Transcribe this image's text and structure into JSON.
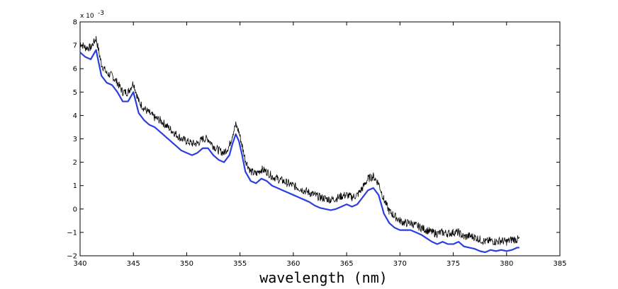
{
  "chart_data": {
    "type": "line",
    "title": "",
    "xlabel": "wavelength (nm)",
    "ylabel": "",
    "y_multiplier_base": "x 10",
    "y_multiplier_exp": "-3",
    "xlim": [
      340,
      385
    ],
    "ylim": [
      -2,
      8
    ],
    "x_ticks": [
      340,
      345,
      350,
      355,
      360,
      365,
      370,
      375,
      380,
      385
    ],
    "y_ticks": [
      -2,
      -1,
      0,
      1,
      2,
      3,
      4,
      5,
      6,
      7,
      8
    ],
    "grid": false,
    "series": [
      {
        "color": "#000000",
        "style": "noisy",
        "x": [
          340.0,
          340.5,
          341.0,
          341.5,
          342.0,
          342.5,
          343.0,
          343.5,
          344.0,
          344.5,
          345.0,
          345.5,
          346.0,
          346.5,
          347.0,
          347.5,
          348.0,
          348.5,
          349.0,
          349.5,
          350.0,
          350.5,
          351.0,
          351.5,
          352.0,
          352.5,
          353.0,
          353.5,
          354.0,
          354.3,
          354.6,
          354.9,
          355.2,
          355.5,
          356.0,
          356.5,
          357.0,
          357.5,
          358.0,
          358.5,
          359.0,
          359.5,
          360.0,
          360.5,
          361.0,
          361.5,
          362.0,
          362.5,
          363.0,
          363.5,
          364.0,
          364.5,
          365.0,
          365.5,
          366.0,
          366.5,
          367.0,
          367.5,
          368.0,
          368.5,
          369.0,
          369.5,
          370.0,
          370.5,
          371.0,
          371.5,
          372.0,
          372.5,
          373.0,
          373.5,
          374.0,
          374.5,
          375.0,
          375.5,
          376.0,
          376.5,
          377.0,
          377.5,
          378.0,
          378.5,
          379.0,
          379.5,
          380.0,
          380.5,
          381.0,
          381.2
        ],
        "y": [
          7.1,
          6.9,
          6.9,
          7.3,
          6.2,
          5.8,
          5.7,
          5.4,
          5.0,
          5.0,
          5.4,
          4.6,
          4.3,
          4.1,
          3.9,
          3.8,
          3.6,
          3.4,
          3.2,
          3.0,
          2.9,
          2.8,
          2.8,
          3.0,
          3.0,
          2.7,
          2.5,
          2.4,
          2.7,
          3.2,
          3.6,
          3.3,
          2.7,
          2.1,
          1.6,
          1.5,
          1.7,
          1.6,
          1.4,
          1.3,
          1.2,
          1.1,
          1.0,
          0.9,
          0.8,
          0.7,
          0.6,
          0.5,
          0.45,
          0.4,
          0.45,
          0.55,
          0.6,
          0.5,
          0.6,
          0.9,
          1.3,
          1.4,
          1.1,
          0.4,
          -0.1,
          -0.3,
          -0.5,
          -0.6,
          -0.6,
          -0.7,
          -0.8,
          -0.9,
          -1.0,
          -1.05,
          -1.0,
          -1.05,
          -1.0,
          -1.0,
          -1.2,
          -1.15,
          -1.2,
          -1.3,
          -1.4,
          -1.35,
          -1.4,
          -1.35,
          -1.4,
          -1.3,
          -1.3,
          -1.3
        ]
      },
      {
        "color": "#2b3fe0",
        "style": "smooth",
        "x": [
          340.0,
          340.5,
          341.0,
          341.5,
          342.0,
          342.5,
          343.0,
          343.5,
          344.0,
          344.5,
          345.0,
          345.5,
          346.0,
          346.5,
          347.0,
          347.5,
          348.0,
          348.5,
          349.0,
          349.5,
          350.0,
          350.5,
          351.0,
          351.5,
          352.0,
          352.5,
          353.0,
          353.5,
          354.0,
          354.3,
          354.6,
          354.9,
          355.2,
          355.5,
          356.0,
          356.5,
          357.0,
          357.5,
          358.0,
          358.5,
          359.0,
          359.5,
          360.0,
          360.5,
          361.0,
          361.5,
          362.0,
          362.5,
          363.0,
          363.5,
          364.0,
          364.5,
          365.0,
          365.5,
          366.0,
          366.5,
          367.0,
          367.5,
          368.0,
          368.5,
          369.0,
          369.5,
          370.0,
          370.5,
          371.0,
          371.5,
          372.0,
          372.5,
          373.0,
          373.5,
          374.0,
          374.5,
          375.0,
          375.5,
          376.0,
          376.5,
          377.0,
          377.5,
          378.0,
          378.5,
          379.0,
          379.5,
          380.0,
          380.5,
          381.0,
          381.2
        ],
        "y": [
          6.7,
          6.5,
          6.4,
          6.8,
          5.7,
          5.4,
          5.3,
          5.0,
          4.6,
          4.6,
          5.0,
          4.1,
          3.8,
          3.6,
          3.5,
          3.3,
          3.1,
          2.9,
          2.7,
          2.5,
          2.4,
          2.3,
          2.4,
          2.6,
          2.6,
          2.3,
          2.1,
          2.0,
          2.3,
          2.8,
          3.2,
          2.9,
          2.3,
          1.6,
          1.2,
          1.1,
          1.3,
          1.2,
          1.0,
          0.9,
          0.8,
          0.7,
          0.6,
          0.5,
          0.4,
          0.3,
          0.15,
          0.05,
          0.0,
          -0.05,
          0.0,
          0.1,
          0.2,
          0.1,
          0.2,
          0.5,
          0.8,
          0.9,
          0.6,
          -0.2,
          -0.6,
          -0.8,
          -0.9,
          -0.9,
          -0.9,
          -1.0,
          -1.1,
          -1.25,
          -1.4,
          -1.5,
          -1.4,
          -1.5,
          -1.5,
          -1.4,
          -1.6,
          -1.65,
          -1.7,
          -1.8,
          -1.85,
          -1.75,
          -1.8,
          -1.75,
          -1.8,
          -1.75,
          -1.65,
          -1.65
        ]
      }
    ]
  }
}
